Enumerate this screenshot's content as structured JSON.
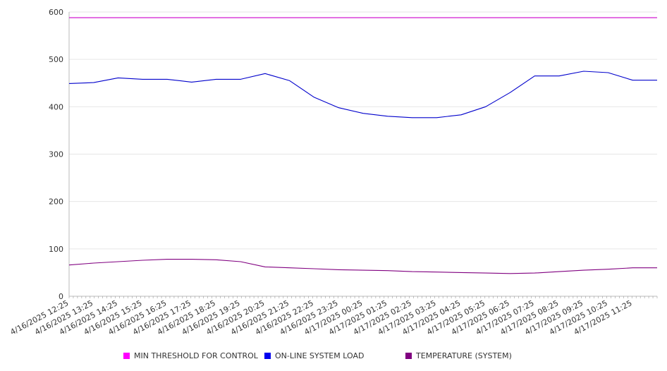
{
  "chart_data": {
    "type": "line",
    "ylim": [
      0,
      600
    ],
    "yticks": [
      0,
      100,
      200,
      300,
      400,
      500,
      600
    ],
    "grid": true,
    "legend_position": "bottom",
    "x": [
      "4/16/2025 12:25",
      "4/16/2025 13:25",
      "4/16/2025 14:25",
      "4/16/2025 15:25",
      "4/16/2025 16:25",
      "4/16/2025 17:25",
      "4/16/2025 18:25",
      "4/16/2025 19:25",
      "4/16/2025 20:25",
      "4/16/2025 21:25",
      "4/16/2025 22:25",
      "4/16/2025 23:25",
      "4/17/2025 00:25",
      "4/17/2025 01:25",
      "4/17/2025 02:25",
      "4/17/2025 03:25",
      "4/17/2025 04:25",
      "4/17/2025 05:25",
      "4/17/2025 06:25",
      "4/17/2025 07:25",
      "4/17/2025 08:25",
      "4/17/2025 09:25",
      "4/17/2025 10:25",
      "4/17/2025 11:25"
    ],
    "series": [
      {
        "name": "MIN THRESHOLD FOR CONTROL",
        "color": "#cc00cc",
        "values": [
          588,
          588,
          588,
          588,
          588,
          588,
          588,
          588,
          588,
          588,
          588,
          588,
          588,
          588,
          588,
          588,
          588,
          588,
          588,
          588,
          588,
          588,
          588,
          588
        ]
      },
      {
        "name": "ON-LINE SYSTEM LOAD",
        "color": "#0000cc",
        "values": [
          449,
          451,
          461,
          458,
          458,
          452,
          458,
          458,
          470,
          455,
          420,
          398,
          386,
          380,
          377,
          377,
          383,
          400,
          430,
          465,
          465,
          475,
          472,
          456
        ]
      },
      {
        "name": "TEMPERATURE (SYSTEM)",
        "color": "#800080",
        "values": [
          66,
          70,
          73,
          76,
          78,
          78,
          77,
          73,
          62,
          60,
          58,
          56,
          55,
          54,
          52,
          51,
          50,
          49,
          48,
          49,
          52,
          55,
          57,
          60
        ]
      }
    ]
  },
  "legend": {
    "items": [
      {
        "label": "MIN THRESHOLD FOR CONTROL",
        "color": "#ff00ff"
      },
      {
        "label": "ON-LINE SYSTEM LOAD",
        "color": "#0000ee"
      },
      {
        "label": "TEMPERATURE (SYSTEM)",
        "color": "#800080"
      }
    ]
  }
}
